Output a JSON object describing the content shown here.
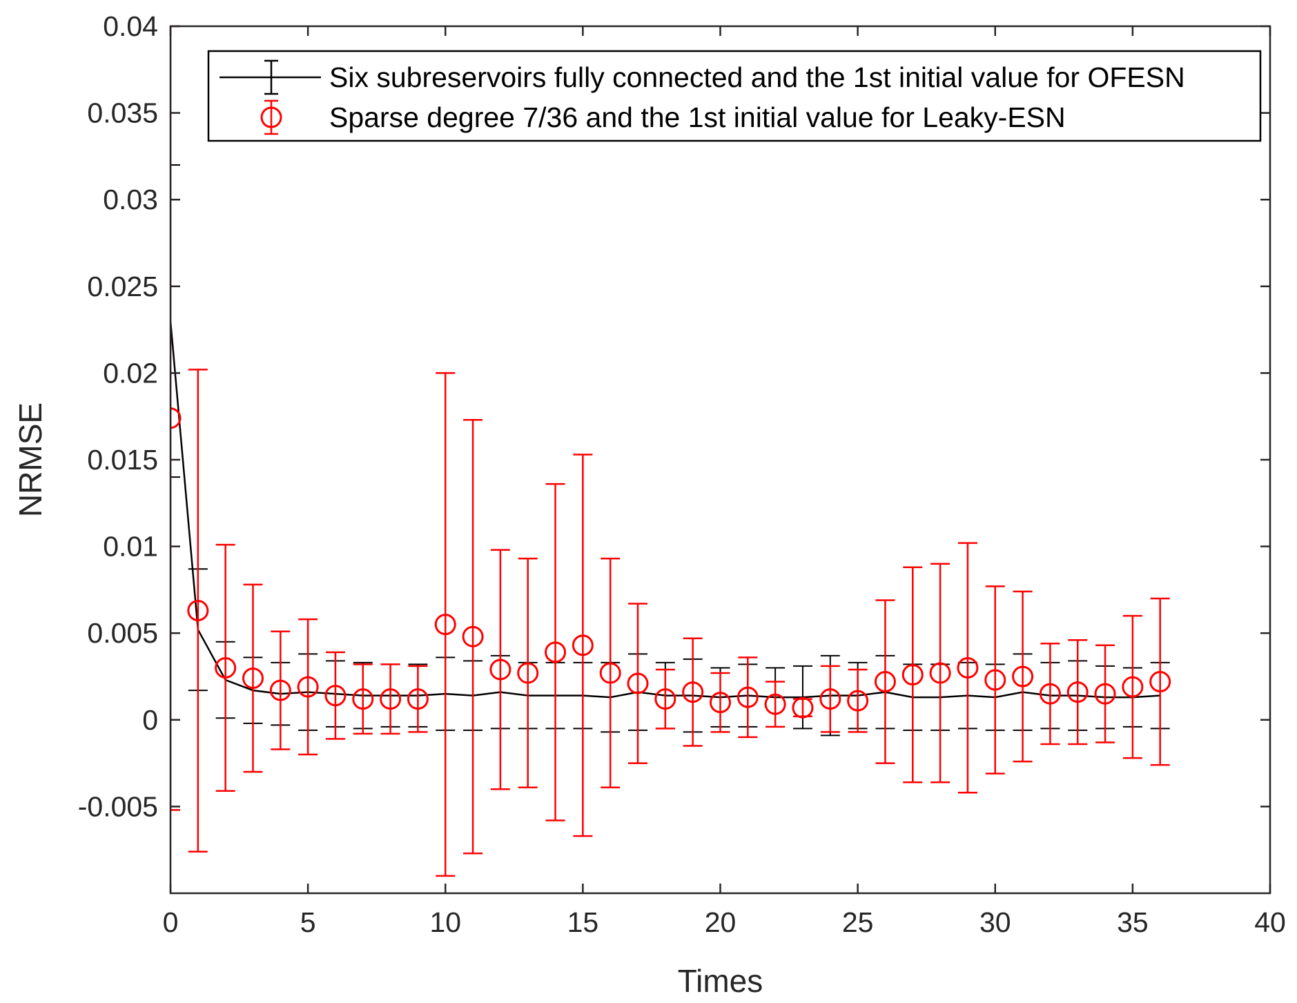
{
  "chart_data": {
    "type": "line",
    "title": "",
    "xlabel": "Times",
    "ylabel": "NRMSE",
    "xlim": [
      0,
      40
    ],
    "ylim": [
      -0.01,
      0.04
    ],
    "xticks": [
      0,
      5,
      10,
      15,
      20,
      25,
      30,
      35,
      40
    ],
    "xtick_labels": [
      "0",
      "5",
      "10",
      "15",
      "20",
      "25",
      "30",
      "35",
      "40"
    ],
    "yticks": [
      -0.005,
      0,
      0.005,
      0.01,
      0.015,
      0.02,
      0.025,
      0.03,
      0.035,
      0.04
    ],
    "ytick_labels": [
      "-0.005",
      "0",
      "0.005",
      "0.01",
      "0.015",
      "0.02",
      "0.025",
      "0.03",
      "0.035",
      "0.04"
    ],
    "grid": false,
    "legend_position": "top-right",
    "series": [
      {
        "name": "Six subreservoirs fully connected and the 1st initial value for OFESN",
        "color": "#000000",
        "style": "line-errorbar",
        "x": [
          0,
          1,
          2,
          3,
          4,
          5,
          6,
          7,
          8,
          9,
          10,
          11,
          12,
          13,
          14,
          15,
          16,
          17,
          18,
          19,
          20,
          21,
          22,
          23,
          24,
          25,
          26,
          27,
          28,
          29,
          30,
          31,
          32,
          33,
          34,
          35,
          36
        ],
        "y": [
          0.023,
          0.0052,
          0.0023,
          0.0017,
          0.0015,
          0.0016,
          0.0015,
          0.0014,
          0.0014,
          0.0014,
          0.0015,
          0.0014,
          0.0016,
          0.0014,
          0.0014,
          0.0014,
          0.0013,
          0.0016,
          0.0014,
          0.0014,
          0.0013,
          0.0014,
          0.0013,
          0.0013,
          0.0014,
          0.0014,
          0.0016,
          0.0013,
          0.0013,
          0.0014,
          0.0013,
          0.0016,
          0.0014,
          0.0014,
          0.0013,
          0.0013,
          0.0014
        ],
        "err": [
          0.009,
          0.0035,
          0.0022,
          0.0019,
          0.0018,
          0.0022,
          0.0019,
          0.0019,
          0.0018,
          0.0018,
          0.0021,
          0.002,
          0.0021,
          0.0019,
          0.0019,
          0.0019,
          0.002,
          0.0022,
          0.0019,
          0.0021,
          0.0017,
          0.0018,
          0.0017,
          0.0018,
          0.0023,
          0.0019,
          0.0021,
          0.0019,
          0.0019,
          0.0019,
          0.0019,
          0.0022,
          0.0019,
          0.002,
          0.0018,
          0.0017,
          0.0019
        ]
      },
      {
        "name": "Sparse degree 7/36 and the 1st initial value for Leaky-ESN",
        "color": "#ff0000",
        "style": "marker-errorbar",
        "marker": "circle",
        "x": [
          0,
          1,
          2,
          3,
          4,
          5,
          6,
          7,
          8,
          9,
          10,
          11,
          12,
          13,
          14,
          15,
          16,
          17,
          18,
          19,
          20,
          21,
          22,
          23,
          24,
          25,
          26,
          27,
          28,
          29,
          30,
          31,
          32,
          33,
          34,
          35,
          36
        ],
        "y": [
          0.0174,
          0.0063,
          0.003,
          0.0024,
          0.0017,
          0.0019,
          0.0014,
          0.0012,
          0.0012,
          0.0012,
          0.0055,
          0.0048,
          0.0029,
          0.0027,
          0.0039,
          0.0043,
          0.0027,
          0.0021,
          0.0012,
          0.0016,
          0.001,
          0.0013,
          0.0009,
          0.0007,
          0.0012,
          0.0011,
          0.0022,
          0.0026,
          0.0027,
          0.003,
          0.0023,
          0.0025,
          0.0015,
          0.0016,
          0.0015,
          0.0019,
          0.0022
        ],
        "err": [
          0.0226,
          0.0139,
          0.0071,
          0.0054,
          0.0034,
          0.0039,
          0.0025,
          0.002,
          0.002,
          0.0019,
          0.0145,
          0.0125,
          0.0069,
          0.0066,
          0.0097,
          0.011,
          0.0066,
          0.0046,
          0.0017,
          0.0031,
          0.0017,
          0.0023,
          0.0013,
          0.0005,
          0.0019,
          0.0018,
          0.0047,
          0.0062,
          0.0063,
          0.0072,
          0.0054,
          0.0049,
          0.0029,
          0.003,
          0.0028,
          0.0041,
          0.0048
        ]
      }
    ]
  }
}
